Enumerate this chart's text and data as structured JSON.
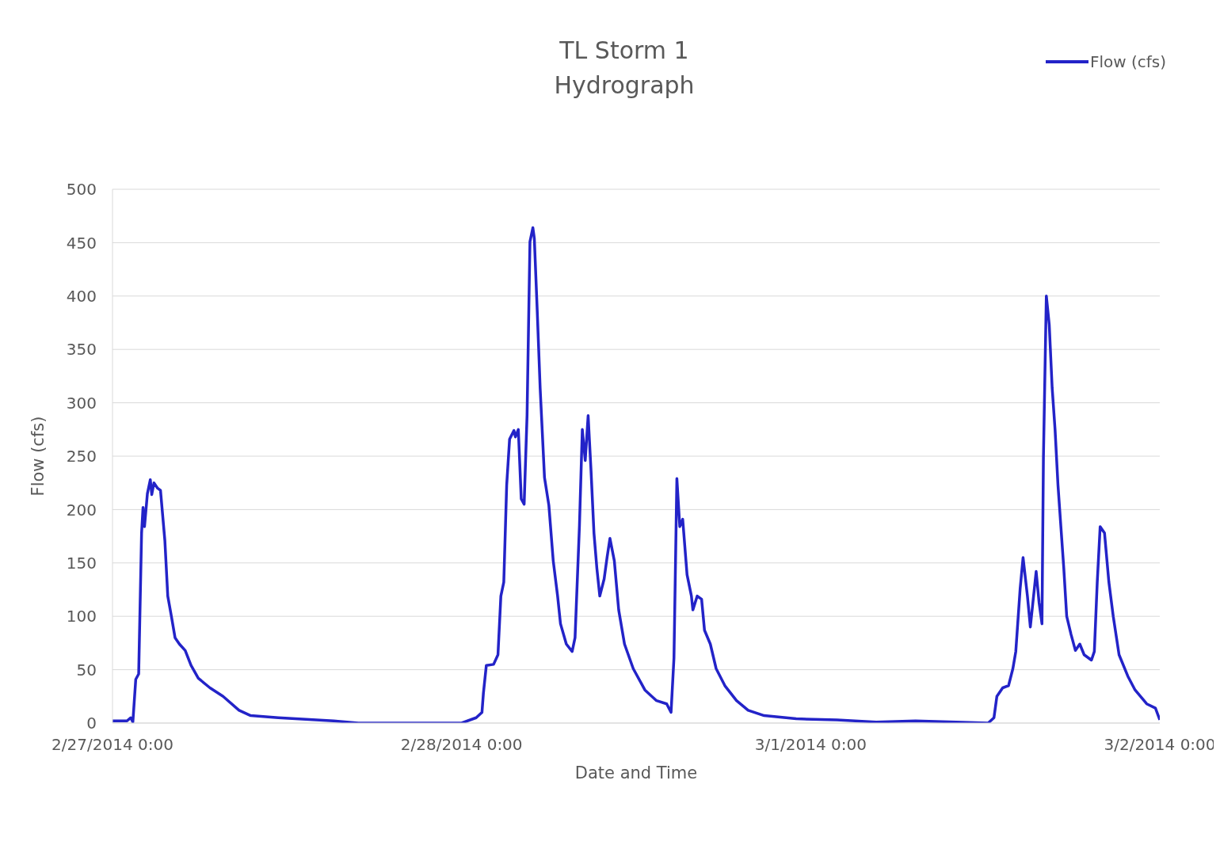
{
  "chart_data": {
    "type": "line",
    "title": "TL Storm 1\nHydrograph",
    "xlabel": "Date and Time",
    "ylabel": "Flow (cfs)",
    "x": [
      "2014-02-27T00:00",
      "2014-02-27T01:00",
      "2014-02-27T01:15",
      "2014-02-27T01:24",
      "2014-02-27T01:36",
      "2014-02-27T01:48",
      "2014-02-27T02:00",
      "2014-02-27T02:06",
      "2014-02-27T02:12",
      "2014-02-27T02:24",
      "2014-02-27T02:36",
      "2014-02-27T02:42",
      "2014-02-27T02:51",
      "2014-02-27T03:06",
      "2014-02-27T03:18",
      "2014-02-27T03:36",
      "2014-02-27T03:48",
      "2014-02-27T04:03",
      "2014-02-27T04:18",
      "2014-02-27T04:36",
      "2014-02-27T05:00",
      "2014-02-27T05:24",
      "2014-02-27T05:54",
      "2014-02-27T06:42",
      "2014-02-27T07:36",
      "2014-02-27T08:42",
      "2014-02-27T09:30",
      "2014-02-27T11:24",
      "2014-02-27T15:12",
      "2014-02-27T16:54",
      "2014-02-28T00:00",
      "2014-02-28T01:00",
      "2014-02-28T01:24",
      "2014-02-28T01:30",
      "2014-02-28T01:42",
      "2014-02-28T02:12",
      "2014-02-28T02:30",
      "2014-02-28T02:42",
      "2014-02-28T02:54",
      "2014-02-28T03:06",
      "2014-02-28T03:18",
      "2014-02-28T03:36",
      "2014-02-28T03:42",
      "2014-02-28T03:54",
      "2014-02-28T04:06",
      "2014-02-28T04:18",
      "2014-02-28T04:30",
      "2014-02-28T04:42",
      "2014-02-28T04:54",
      "2014-02-28T05:00",
      "2014-02-28T05:12",
      "2014-02-28T05:24",
      "2014-02-28T05:42",
      "2014-02-28T06:00",
      "2014-02-28T06:18",
      "2014-02-28T06:36",
      "2014-02-28T06:48",
      "2014-02-28T07:12",
      "2014-02-28T07:36",
      "2014-02-28T07:48",
      "2014-02-28T08:06",
      "2014-02-28T08:18",
      "2014-02-28T08:30",
      "2014-02-28T08:42",
      "2014-02-28T08:54",
      "2014-02-28T09:06",
      "2014-02-28T09:18",
      "2014-02-28T09:30",
      "2014-02-28T09:48",
      "2014-02-28T10:00",
      "2014-02-28T10:12",
      "2014-02-28T10:30",
      "2014-02-28T10:48",
      "2014-02-28T11:12",
      "2014-02-28T11:48",
      "2014-02-28T12:36",
      "2014-02-28T13:24",
      "2014-02-28T14:06",
      "2014-02-28T14:24",
      "2014-02-28T14:36",
      "2014-02-28T14:48",
      "2014-02-28T15:00",
      "2014-02-28T15:12",
      "2014-02-28T15:30",
      "2014-02-28T15:48",
      "2014-02-28T15:54",
      "2014-02-28T16:12",
      "2014-02-28T16:30",
      "2014-02-28T16:42",
      "2014-02-28T17:06",
      "2014-02-28T17:30",
      "2014-02-28T18:06",
      "2014-02-28T18:54",
      "2014-02-28T19:42",
      "2014-02-28T20:48",
      "2014-02-28T23:00",
      "2014-03-01T01:48",
      "2014-03-01T04:30",
      "2014-03-01T07:12",
      "2014-03-01T10:00",
      "2014-03-01T12:12",
      "2014-03-01T12:36",
      "2014-03-01T12:48",
      "2014-03-01T13:12",
      "2014-03-01T13:36",
      "2014-03-01T13:54",
      "2014-03-01T14:06",
      "2014-03-01T14:24",
      "2014-03-01T14:36",
      "2014-03-01T14:54",
      "2014-03-01T15:06",
      "2014-03-01T15:30",
      "2014-03-01T15:42",
      "2014-03-01T15:54",
      "2014-03-01T16:00",
      "2014-03-01T16:12",
      "2014-03-01T16:24",
      "2014-03-01T16:36",
      "2014-03-01T16:48",
      "2014-03-01T17:00",
      "2014-03-01T17:12",
      "2014-03-01T17:24",
      "2014-03-01T17:36",
      "2014-03-01T17:54",
      "2014-03-01T18:12",
      "2014-03-01T18:30",
      "2014-03-01T18:48",
      "2014-03-01T19:18",
      "2014-03-01T19:30",
      "2014-03-01T19:42",
      "2014-03-01T19:54",
      "2014-03-01T20:12",
      "2014-03-01T20:30",
      "2014-03-01T20:48",
      "2014-03-01T21:12",
      "2014-03-01T21:48",
      "2014-03-01T22:18",
      "2014-03-01T23:06",
      "2014-03-01T23:42",
      "2014-03-02T00:00"
    ],
    "series": [
      {
        "name": "Flow (cfs)",
        "color": "#2323c8",
        "values": [
          2,
          2,
          5,
          1,
          41,
          46,
          178,
          202,
          184,
          215,
          228,
          214,
          225,
          220,
          218,
          171,
          119,
          100,
          80,
          74,
          68,
          54,
          42,
          33,
          25,
          12,
          7,
          5,
          2,
          0,
          0,
          5,
          10,
          28,
          54,
          55,
          64,
          119,
          132,
          223,
          266,
          274,
          268,
          275,
          210,
          205,
          288,
          451,
          464,
          454,
          386,
          314,
          230,
          204,
          152,
          119,
          93,
          74,
          67,
          80,
          184,
          275,
          246,
          288,
          236,
          178,
          145,
          119,
          135,
          155,
          173,
          152,
          106,
          74,
          51,
          31,
          21,
          18,
          10,
          61,
          229,
          184,
          191,
          139,
          119,
          106,
          119,
          116,
          87,
          74,
          51,
          35,
          21,
          12,
          7,
          4,
          3,
          1,
          2,
          1,
          0,
          5,
          25,
          33,
          35,
          51,
          67,
          126,
          155,
          119,
          90,
          142,
          113,
          93,
          249,
          400,
          373,
          314,
          275,
          223,
          184,
          145,
          100,
          83,
          68,
          74,
          64,
          59,
          67,
          132,
          184,
          178,
          132,
          100,
          64,
          44,
          31,
          18,
          14,
          3
        ]
      }
    ],
    "xlim": [
      "2014-02-27T00:00",
      "2014-03-02T00:00"
    ],
    "xticks": [
      {
        "value": "2014-02-27T00:00",
        "label": "2/27/2014 0:00"
      },
      {
        "value": "2014-02-28T00:00",
        "label": "2/28/2014 0:00"
      },
      {
        "value": "2014-03-01T00:00",
        "label": "3/1/2014 0:00"
      },
      {
        "value": "2014-03-02T00:00",
        "label": "3/2/2014 0:00"
      }
    ],
    "ylim": [
      0,
      500
    ],
    "yticks": [
      0,
      50,
      100,
      150,
      200,
      250,
      300,
      350,
      400,
      450,
      500
    ],
    "grid": "y",
    "legend": "top right",
    "line_style": "solid"
  }
}
